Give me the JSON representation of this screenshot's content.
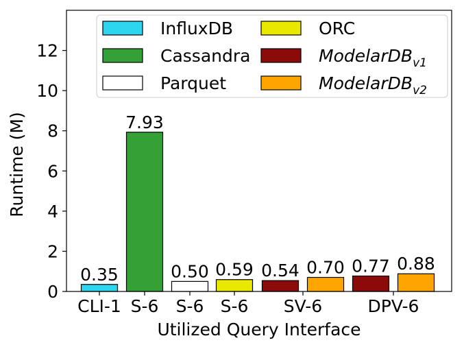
{
  "chart_data": {
    "type": "bar",
    "xlabel": "Utilized Query Interface",
    "ylabel": "Runtime (M)",
    "ylim": [
      0,
      14
    ],
    "yticks": [
      0,
      2,
      4,
      6,
      8,
      10,
      12
    ],
    "grid": false,
    "legend_position": "top",
    "bars": [
      {
        "series": "InfluxDB",
        "category": "CLI-1",
        "value": 0.35,
        "label": "0.35",
        "color": "#2dd4ee"
      },
      {
        "series": "Cassandra",
        "category": "S-6",
        "value": 7.93,
        "label": "7.93",
        "color": "#35a035"
      },
      {
        "series": "Parquet",
        "category": "S-6",
        "value": 0.5,
        "label": "0.50",
        "color": "#ffffff"
      },
      {
        "series": "ORC",
        "category": "S-6",
        "value": 0.59,
        "label": "0.59",
        "color": "#e8e800"
      },
      {
        "series": "ModelarDB v1",
        "category": "SV-6",
        "value": 0.54,
        "label": "0.54",
        "color": "#8b0a0a"
      },
      {
        "series": "ModelarDB v2",
        "category": "SV-6",
        "value": 0.7,
        "label": "0.70",
        "color": "#ffa500"
      },
      {
        "series": "ModelarDB v1",
        "category": "DPV-6",
        "value": 0.77,
        "label": "0.77",
        "color": "#8b0a0a"
      },
      {
        "series": "ModelarDB v2",
        "category": "DPV-6",
        "value": 0.88,
        "label": "0.88",
        "color": "#ffa500"
      }
    ],
    "x_tick_labels": [
      "CLI-1",
      "S-6",
      "S-6",
      "S-6",
      "SV-6",
      "DPV-6"
    ],
    "legend": [
      {
        "name": "InfluxDB",
        "color": "#2dd4ee"
      },
      {
        "name": "Cassandra",
        "color": "#35a035"
      },
      {
        "name": "Parquet",
        "color": "#ffffff"
      },
      {
        "name": "ORC",
        "color": "#e8e800"
      },
      {
        "name": "ModelarDB",
        "sub": "v1",
        "color": "#8b0a0a"
      },
      {
        "name": "ModelarDB",
        "sub": "v2",
        "color": "#ffa500"
      }
    ]
  }
}
